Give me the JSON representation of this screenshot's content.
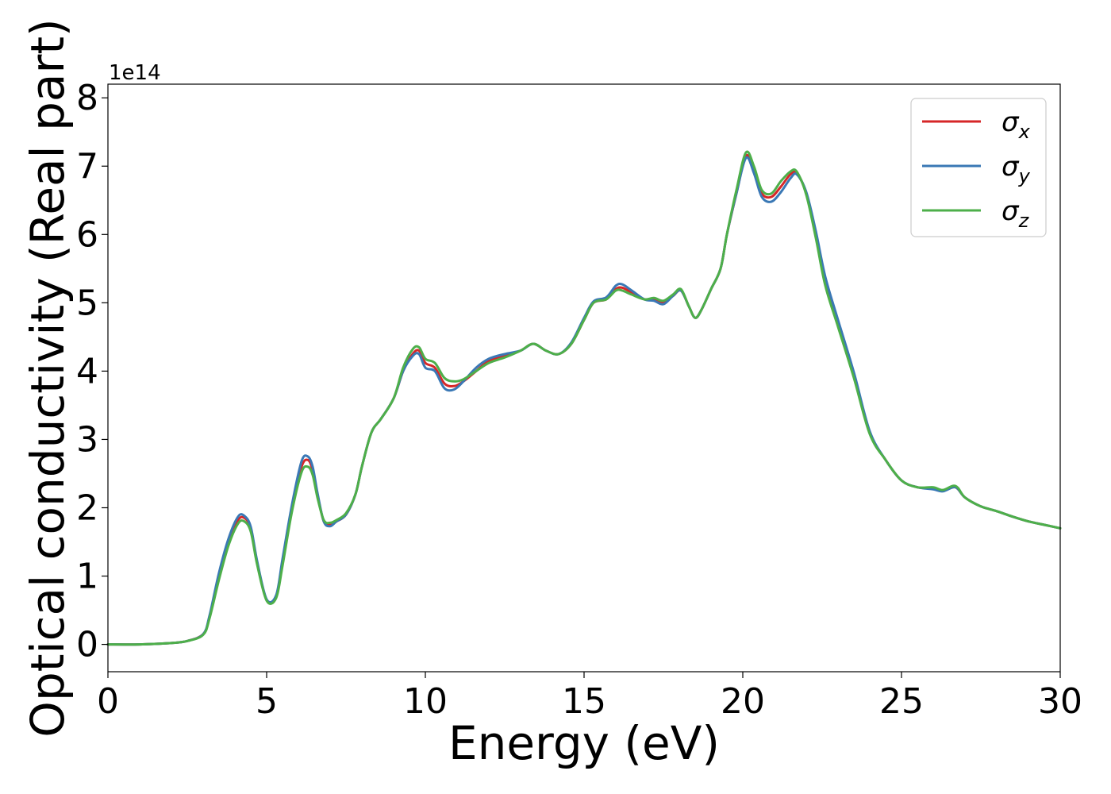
{
  "chart_data": {
    "type": "line",
    "title": "",
    "xlabel": "Energy (eV)",
    "ylabel": "Optical conductivity (Real part)",
    "y_offset_label": "1e14",
    "xlim": [
      0,
      30
    ],
    "ylim": [
      -0.4,
      8.2
    ],
    "xticks": [
      0,
      5,
      10,
      15,
      20,
      25,
      30
    ],
    "xtick_labels": [
      "0",
      "5",
      "10",
      "15",
      "20",
      "25",
      "30"
    ],
    "yticks": [
      0,
      1,
      2,
      3,
      4,
      5,
      6,
      7,
      8
    ],
    "ytick_labels": [
      "0",
      "1",
      "2",
      "3",
      "4",
      "5",
      "6",
      "7",
      "8"
    ],
    "grid": false,
    "legend_position": "top-right",
    "series": [
      {
        "name": "σx",
        "legend_main": "σ",
        "legend_sub": "x",
        "color": "#d62728",
        "x": [
          0,
          1,
          2,
          2.5,
          3.0,
          3.2,
          3.5,
          3.8,
          4.1,
          4.3,
          4.5,
          4.7,
          5.0,
          5.3,
          5.5,
          5.8,
          6.1,
          6.3,
          6.45,
          6.6,
          6.8,
          7.0,
          7.2,
          7.5,
          7.8,
          8.0,
          8.3,
          8.6,
          9.0,
          9.3,
          9.6,
          9.8,
          10.0,
          10.3,
          10.6,
          10.9,
          11.2,
          11.6,
          12.0,
          12.5,
          13.0,
          13.4,
          13.8,
          14.2,
          14.6,
          15.0,
          15.3,
          15.7,
          16.0,
          16.2,
          16.5,
          16.9,
          17.2,
          17.5,
          17.8,
          18.05,
          18.3,
          18.5,
          18.7,
          19.0,
          19.3,
          19.5,
          19.8,
          20.1,
          20.35,
          20.6,
          20.9,
          21.2,
          21.5,
          21.7,
          22.0,
          22.3,
          22.6,
          23.0,
          23.5,
          24.0,
          24.5,
          25.0,
          25.5,
          26.0,
          26.3,
          26.7,
          27.0,
          27.5,
          28.0,
          28.5,
          29.0,
          29.5,
          30.0
        ],
        "y": [
          0.0,
          0.0,
          0.02,
          0.05,
          0.15,
          0.4,
          1.0,
          1.5,
          1.82,
          1.85,
          1.7,
          1.2,
          0.65,
          0.7,
          1.2,
          2.0,
          2.6,
          2.7,
          2.55,
          2.2,
          1.8,
          1.75,
          1.8,
          1.9,
          2.2,
          2.6,
          3.1,
          3.3,
          3.6,
          4.0,
          4.25,
          4.3,
          4.12,
          4.05,
          3.82,
          3.78,
          3.85,
          4.0,
          4.15,
          4.22,
          4.3,
          4.4,
          4.3,
          4.25,
          4.4,
          4.75,
          5.0,
          5.05,
          5.2,
          5.22,
          5.15,
          5.05,
          5.05,
          5.0,
          5.1,
          5.18,
          4.95,
          4.78,
          4.9,
          5.2,
          5.5,
          6.0,
          6.6,
          7.15,
          6.95,
          6.6,
          6.55,
          6.7,
          6.88,
          6.9,
          6.6,
          6.0,
          5.3,
          4.7,
          3.95,
          3.1,
          2.7,
          2.4,
          2.3,
          2.28,
          2.25,
          2.3,
          2.15,
          2.02,
          1.95,
          1.87,
          1.8,
          1.75,
          1.7
        ]
      },
      {
        "name": "σy",
        "legend_main": "σ",
        "legend_sub": "y",
        "color": "#3a78b5",
        "x": [
          0,
          1,
          2,
          2.5,
          3.0,
          3.2,
          3.5,
          3.8,
          4.1,
          4.3,
          4.5,
          4.7,
          5.0,
          5.3,
          5.5,
          5.8,
          6.1,
          6.3,
          6.45,
          6.6,
          6.8,
          7.0,
          7.2,
          7.5,
          7.8,
          8.0,
          8.3,
          8.6,
          9.0,
          9.3,
          9.6,
          9.8,
          10.0,
          10.3,
          10.6,
          10.9,
          11.2,
          11.6,
          12.0,
          12.5,
          13.0,
          13.4,
          13.8,
          14.2,
          14.6,
          15.0,
          15.3,
          15.7,
          16.0,
          16.2,
          16.5,
          16.9,
          17.2,
          17.5,
          17.8,
          18.05,
          18.3,
          18.5,
          18.7,
          19.0,
          19.3,
          19.5,
          19.8,
          20.1,
          20.35,
          20.6,
          20.9,
          21.2,
          21.5,
          21.7,
          22.0,
          22.3,
          22.6,
          23.0,
          23.5,
          24.0,
          24.5,
          25.0,
          25.5,
          26.0,
          26.3,
          26.7,
          27.0,
          27.5,
          28.0,
          28.5,
          29.0,
          29.5,
          30.0
        ],
        "y": [
          0.0,
          0.0,
          0.02,
          0.05,
          0.15,
          0.42,
          1.05,
          1.55,
          1.87,
          1.88,
          1.72,
          1.22,
          0.66,
          0.72,
          1.25,
          2.05,
          2.68,
          2.75,
          2.6,
          2.22,
          1.8,
          1.73,
          1.8,
          1.9,
          2.2,
          2.6,
          3.1,
          3.3,
          3.6,
          4.0,
          4.22,
          4.25,
          4.05,
          4.0,
          3.75,
          3.73,
          3.85,
          4.05,
          4.18,
          4.25,
          4.3,
          4.4,
          4.3,
          4.25,
          4.42,
          4.78,
          5.02,
          5.08,
          5.25,
          5.27,
          5.18,
          5.05,
          5.03,
          4.98,
          5.1,
          5.18,
          4.95,
          4.78,
          4.9,
          5.2,
          5.5,
          6.0,
          6.6,
          7.12,
          6.9,
          6.55,
          6.48,
          6.62,
          6.82,
          6.88,
          6.62,
          6.05,
          5.38,
          4.75,
          3.98,
          3.12,
          2.7,
          2.4,
          2.3,
          2.27,
          2.24,
          2.3,
          2.15,
          2.02,
          1.95,
          1.87,
          1.8,
          1.75,
          1.7
        ]
      },
      {
        "name": "σz",
        "legend_main": "σ",
        "legend_sub": "z",
        "color": "#4daf4a",
        "x": [
          0,
          1,
          2,
          2.5,
          3.0,
          3.2,
          3.5,
          3.8,
          4.1,
          4.3,
          4.5,
          4.7,
          5.0,
          5.3,
          5.5,
          5.8,
          6.1,
          6.3,
          6.45,
          6.6,
          6.8,
          7.0,
          7.2,
          7.5,
          7.8,
          8.0,
          8.3,
          8.6,
          9.0,
          9.3,
          9.6,
          9.8,
          10.0,
          10.3,
          10.6,
          10.9,
          11.2,
          11.6,
          12.0,
          12.5,
          13.0,
          13.4,
          13.8,
          14.2,
          14.6,
          15.0,
          15.3,
          15.7,
          16.0,
          16.2,
          16.5,
          16.9,
          17.2,
          17.5,
          17.8,
          18.05,
          18.3,
          18.5,
          18.7,
          19.0,
          19.3,
          19.5,
          19.8,
          20.1,
          20.35,
          20.6,
          20.9,
          21.2,
          21.5,
          21.7,
          22.0,
          22.3,
          22.6,
          23.0,
          23.5,
          24.0,
          24.5,
          25.0,
          25.5,
          26.0,
          26.3,
          26.7,
          27.0,
          27.5,
          28.0,
          28.5,
          29.0,
          29.5,
          30.0
        ],
        "y": [
          0.0,
          0.0,
          0.02,
          0.05,
          0.14,
          0.38,
          0.95,
          1.45,
          1.77,
          1.8,
          1.65,
          1.17,
          0.64,
          0.68,
          1.15,
          1.95,
          2.52,
          2.6,
          2.48,
          2.15,
          1.82,
          1.78,
          1.82,
          1.92,
          2.2,
          2.6,
          3.1,
          3.3,
          3.6,
          4.05,
          4.32,
          4.35,
          4.18,
          4.12,
          3.9,
          3.85,
          3.88,
          4.0,
          4.12,
          4.2,
          4.3,
          4.4,
          4.3,
          4.25,
          4.4,
          4.75,
          5.0,
          5.05,
          5.18,
          5.18,
          5.12,
          5.05,
          5.07,
          5.03,
          5.12,
          5.2,
          4.95,
          4.78,
          4.9,
          5.2,
          5.5,
          6.0,
          6.65,
          7.2,
          7.0,
          6.65,
          6.6,
          6.78,
          6.92,
          6.92,
          6.58,
          5.95,
          5.25,
          4.65,
          3.9,
          3.08,
          2.7,
          2.4,
          2.3,
          2.3,
          2.26,
          2.32,
          2.15,
          2.02,
          1.95,
          1.87,
          1.8,
          1.75,
          1.7
        ]
      }
    ]
  }
}
